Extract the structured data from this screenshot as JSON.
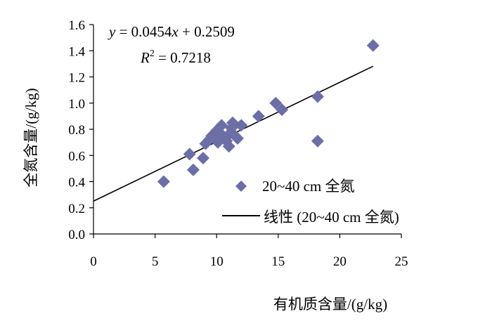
{
  "chart_data": {
    "type": "scatter",
    "title": "",
    "xlabel": "有机质含量/(g/kg)",
    "ylabel": "全氮含量/(g/kg)",
    "xlim": [
      0,
      25
    ],
    "ylim": [
      0,
      1.6
    ],
    "xticks": [
      "0",
      "5",
      "10",
      "15",
      "20",
      "25"
    ],
    "yticks": [
      "0.0",
      "0.2",
      "0.4",
      "0.6",
      "0.8",
      "1.0",
      "1.2",
      "1.4",
      "1.6"
    ],
    "grid": false,
    "legend_position": "bottom-right",
    "marker_color": "#6C6EA6",
    "series": [
      {
        "name": "20~40 cm 全氮",
        "marker": "diamond",
        "points": [
          [
            5.7,
            0.4
          ],
          [
            7.8,
            0.61
          ],
          [
            8.1,
            0.49
          ],
          [
            8.9,
            0.58
          ],
          [
            9.1,
            0.69
          ],
          [
            9.4,
            0.72
          ],
          [
            9.6,
            0.75
          ],
          [
            9.8,
            0.73
          ],
          [
            10.0,
            0.79
          ],
          [
            10.1,
            0.7
          ],
          [
            10.3,
            0.77
          ],
          [
            10.4,
            0.83
          ],
          [
            10.6,
            0.74
          ],
          [
            10.8,
            0.71
          ],
          [
            11.0,
            0.67
          ],
          [
            11.1,
            0.77
          ],
          [
            11.2,
            0.81
          ],
          [
            11.3,
            0.85
          ],
          [
            11.5,
            0.75
          ],
          [
            11.7,
            0.73
          ],
          [
            12.0,
            0.83
          ],
          [
            13.4,
            0.9
          ],
          [
            14.8,
            1.0
          ],
          [
            15.3,
            0.95
          ],
          [
            18.2,
            1.05
          ],
          [
            18.2,
            0.71
          ],
          [
            22.7,
            1.44
          ]
        ]
      },
      {
        "name": "线性 (20~40 cm 全氮)",
        "type": "line",
        "slope": 0.0454,
        "intercept": 0.2509,
        "x_range": [
          0,
          22.7
        ]
      }
    ],
    "annotations": {
      "equation": {
        "y": "y",
        "eq": " = 0.0454",
        "x": "x",
        "rest": " + 0.2509"
      },
      "r2": {
        "R": "R",
        "sup": "2",
        "rest": " = 0.7218"
      }
    }
  }
}
